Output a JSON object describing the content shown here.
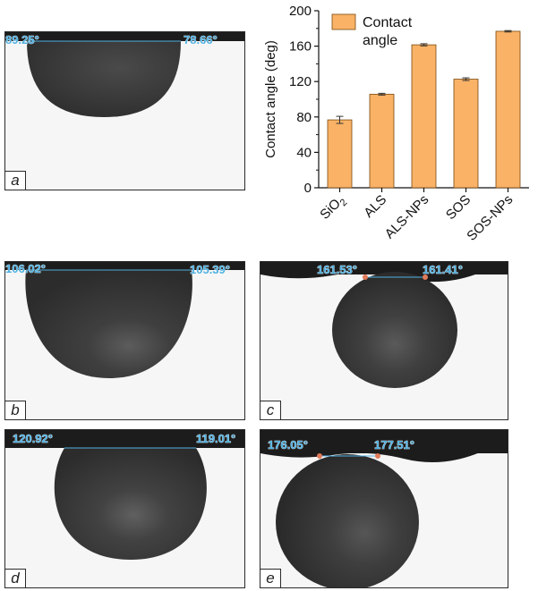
{
  "panels": {
    "a": {
      "label": "a",
      "left_angle": "89.25°",
      "right_angle": "78.66°"
    },
    "b": {
      "label": "b",
      "left_angle": "106.02°",
      "right_angle": "105.39°"
    },
    "c": {
      "label": "c",
      "left_angle": "161.53°",
      "right_angle": "161.41°"
    },
    "d": {
      "label": "d",
      "left_angle": "120.92°",
      "right_angle": "119.01°"
    },
    "e": {
      "label": "e",
      "left_angle": "176.05°",
      "right_angle": "177.51°"
    }
  },
  "colors": {
    "bar": "#f9b266",
    "bar_edge": "#7a4a12",
    "angle_text": "#4fb0e0",
    "droplet": "#3b3b3b"
  },
  "chart_data": {
    "type": "bar",
    "categories": [
      "SiO2",
      "ALS",
      "ALS-NPs",
      "SOS",
      "SOS-NPs"
    ],
    "values": [
      76.7,
      105.7,
      161.5,
      122.7,
      176.8
    ],
    "errors": [
      4,
      1,
      1.2,
      1.5,
      0.8
    ],
    "ylabel": "Contact angle (deg)",
    "legend": "Contact angle",
    "legend_position": "top-left",
    "ylim": [
      0,
      200
    ],
    "yticks": [
      0,
      40,
      80,
      120,
      160,
      200
    ]
  }
}
